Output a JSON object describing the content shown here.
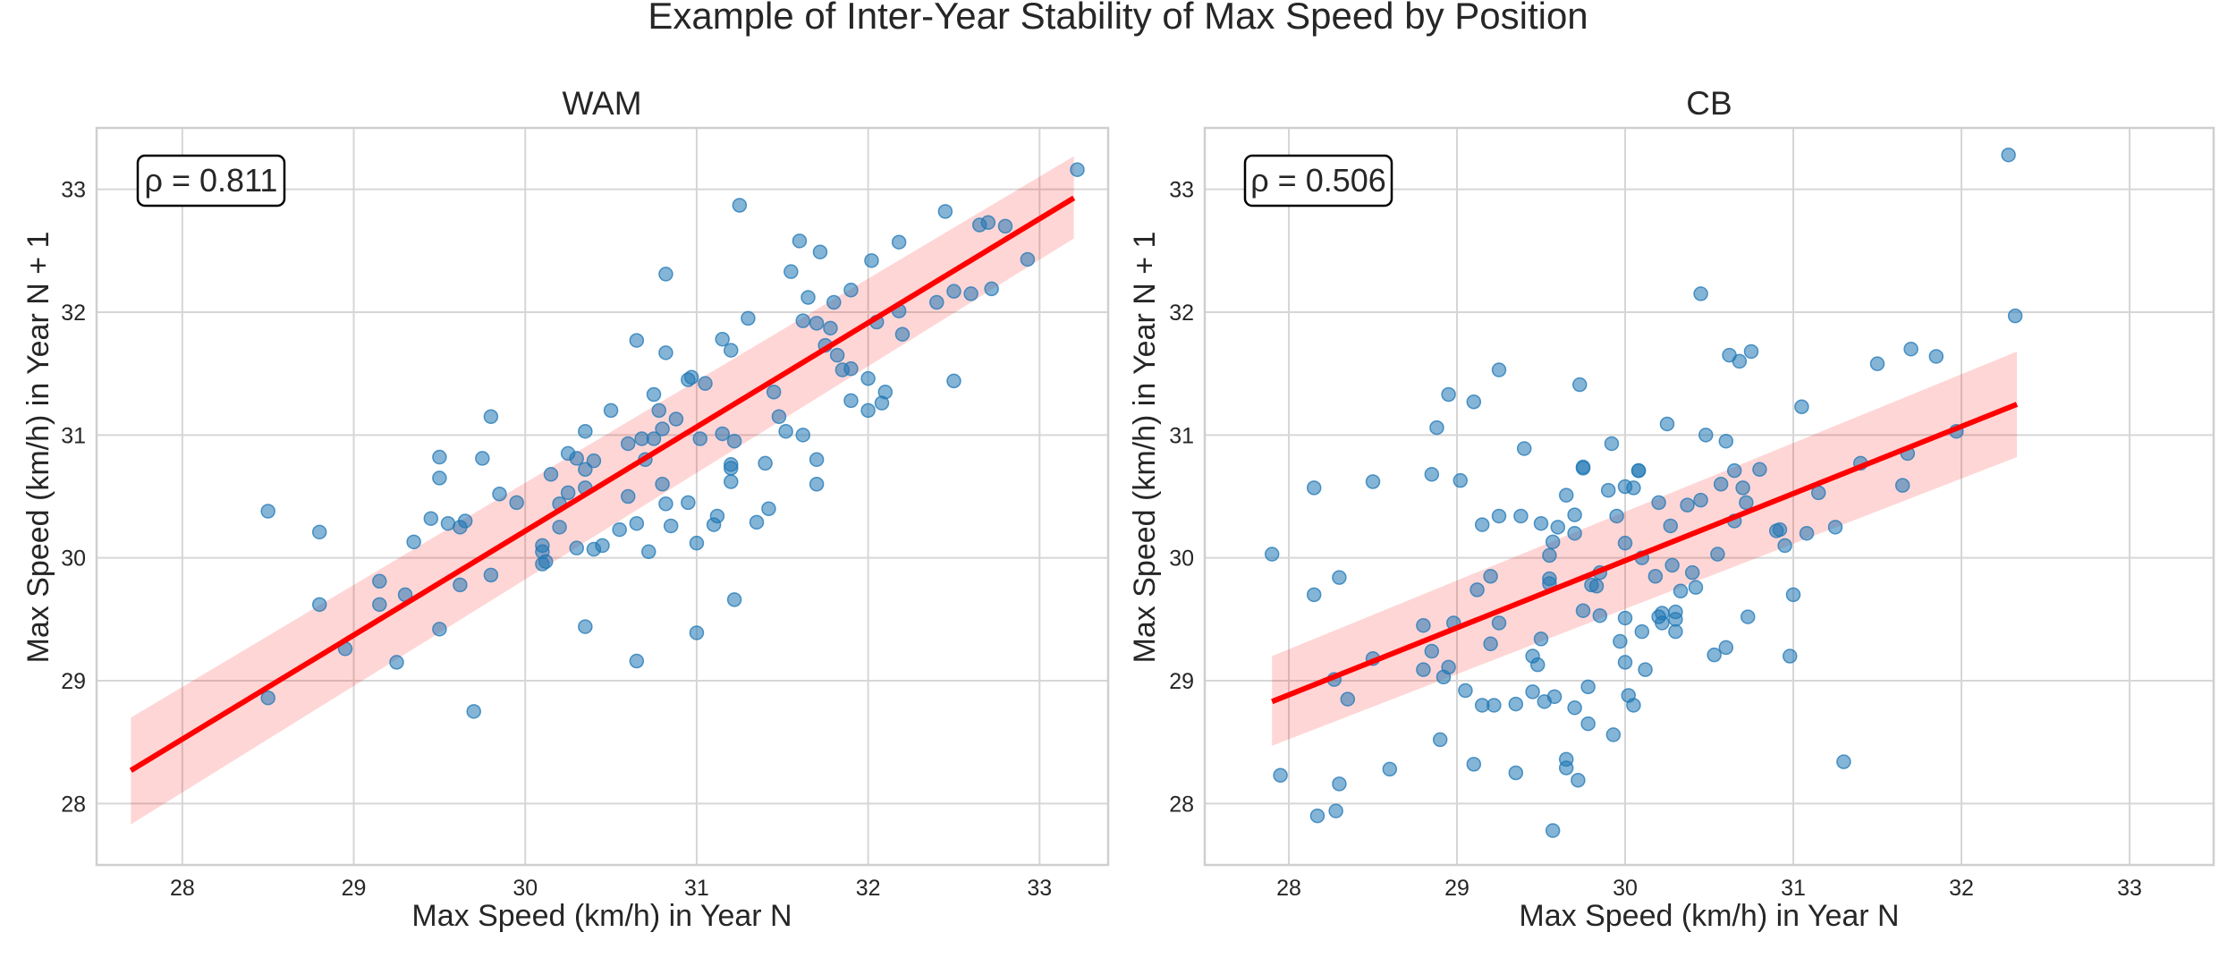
{
  "chart_data": {
    "title": "Example of Inter-Year Stability of Max Speed by Position",
    "type": "scatter",
    "panels": [
      {
        "title": "WAM",
        "xlabel": "Max Speed (km/h) in Year N",
        "ylabel": "Max Speed (km/h) in Year N + 1",
        "xlim": [
          27.5,
          33.4
        ],
        "ylim": [
          27.5,
          33.5
        ],
        "xticks": [
          28,
          29,
          30,
          31,
          32,
          33
        ],
        "yticks": [
          28,
          29,
          30,
          31,
          32,
          33
        ],
        "annotation": "ρ = 0.811",
        "regression": {
          "x": [
            27.7,
            33.2
          ],
          "y": [
            28.27,
            32.93
          ],
          "band_lower": [
            27.83,
            32.6
          ],
          "band_upper": [
            28.7,
            33.27
          ]
        },
        "points": [
          [
            28.5,
            30.38
          ],
          [
            28.5,
            28.86
          ],
          [
            28.8,
            29.62
          ],
          [
            28.8,
            30.21
          ],
          [
            28.95,
            29.26
          ],
          [
            29.15,
            29.81
          ],
          [
            29.15,
            29.62
          ],
          [
            29.25,
            29.15
          ],
          [
            29.3,
            29.7
          ],
          [
            29.35,
            30.13
          ],
          [
            29.45,
            30.32
          ],
          [
            29.5,
            30.65
          ],
          [
            29.5,
            30.82
          ],
          [
            29.5,
            29.42
          ],
          [
            29.55,
            30.28
          ],
          [
            29.62,
            30.25
          ],
          [
            29.65,
            30.3
          ],
          [
            29.62,
            29.78
          ],
          [
            29.7,
            28.75
          ],
          [
            29.75,
            30.81
          ],
          [
            29.8,
            31.15
          ],
          [
            29.8,
            29.86
          ],
          [
            29.85,
            30.52
          ],
          [
            29.95,
            30.45
          ],
          [
            30.1,
            30.1
          ],
          [
            30.1,
            30.05
          ],
          [
            30.1,
            29.95
          ],
          [
            30.12,
            29.97
          ],
          [
            30.15,
            30.68
          ],
          [
            30.2,
            30.44
          ],
          [
            30.2,
            30.25
          ],
          [
            30.25,
            30.53
          ],
          [
            30.25,
            30.85
          ],
          [
            30.3,
            30.81
          ],
          [
            30.3,
            30.08
          ],
          [
            30.35,
            30.57
          ],
          [
            30.35,
            30.72
          ],
          [
            30.35,
            31.03
          ],
          [
            30.35,
            29.44
          ],
          [
            30.4,
            30.79
          ],
          [
            30.4,
            30.07
          ],
          [
            30.45,
            30.1
          ],
          [
            30.5,
            31.2
          ],
          [
            30.55,
            30.23
          ],
          [
            30.6,
            30.5
          ],
          [
            30.6,
            30.93
          ],
          [
            30.65,
            31.77
          ],
          [
            30.65,
            30.28
          ],
          [
            30.65,
            29.16
          ],
          [
            30.68,
            30.97
          ],
          [
            30.7,
            30.8
          ],
          [
            30.72,
            30.05
          ],
          [
            30.75,
            30.97
          ],
          [
            30.75,
            31.33
          ],
          [
            30.78,
            31.2
          ],
          [
            30.8,
            31.05
          ],
          [
            30.8,
            30.6
          ],
          [
            30.82,
            30.44
          ],
          [
            30.82,
            31.67
          ],
          [
            30.82,
            32.31
          ],
          [
            30.85,
            30.26
          ],
          [
            30.88,
            31.13
          ],
          [
            30.95,
            30.45
          ],
          [
            30.95,
            31.45
          ],
          [
            30.97,
            31.47
          ],
          [
            31,
            30.12
          ],
          [
            31,
            29.39
          ],
          [
            31.02,
            30.97
          ],
          [
            31.05,
            31.42
          ],
          [
            31.1,
            30.27
          ],
          [
            31.12,
            30.34
          ],
          [
            31.15,
            31.01
          ],
          [
            31.15,
            31.78
          ],
          [
            31.2,
            30.73
          ],
          [
            31.2,
            30.76
          ],
          [
            31.2,
            30.62
          ],
          [
            31.2,
            31.69
          ],
          [
            31.22,
            30.95
          ],
          [
            31.22,
            29.66
          ],
          [
            31.25,
            32.87
          ],
          [
            31.3,
            31.95
          ],
          [
            31.35,
            30.29
          ],
          [
            31.4,
            30.77
          ],
          [
            31.42,
            30.4
          ],
          [
            31.45,
            31.35
          ],
          [
            31.48,
            31.15
          ],
          [
            31.52,
            31.03
          ],
          [
            31.55,
            32.33
          ],
          [
            31.6,
            32.58
          ],
          [
            31.62,
            31.93
          ],
          [
            31.62,
            31
          ],
          [
            31.65,
            32.12
          ],
          [
            31.7,
            31.91
          ],
          [
            31.7,
            30.8
          ],
          [
            31.7,
            30.6
          ],
          [
            31.72,
            32.49
          ],
          [
            31.75,
            31.73
          ],
          [
            31.78,
            31.87
          ],
          [
            31.8,
            32.08
          ],
          [
            31.82,
            31.65
          ],
          [
            31.85,
            31.53
          ],
          [
            31.9,
            32.18
          ],
          [
            31.9,
            31.54
          ],
          [
            31.9,
            31.28
          ],
          [
            32,
            31.46
          ],
          [
            32,
            31.2
          ],
          [
            32.02,
            32.42
          ],
          [
            32.05,
            31.92
          ],
          [
            32.08,
            31.26
          ],
          [
            32.1,
            31.35
          ],
          [
            32.18,
            32.57
          ],
          [
            32.18,
            32.01
          ],
          [
            32.2,
            31.82
          ],
          [
            32.4,
            32.08
          ],
          [
            32.45,
            32.82
          ],
          [
            32.5,
            32.17
          ],
          [
            32.5,
            31.44
          ],
          [
            32.6,
            32.15
          ],
          [
            32.65,
            32.71
          ],
          [
            32.7,
            32.73
          ],
          [
            32.72,
            32.19
          ],
          [
            32.8,
            32.7
          ],
          [
            32.93,
            32.43
          ],
          [
            33.22,
            33.16
          ]
        ]
      },
      {
        "title": "CB",
        "xlabel": "Max Speed (km/h) in Year N",
        "ylabel": "Max Speed (km/h) in Year N + 1",
        "xlim": [
          27.5,
          33.5
        ],
        "ylim": [
          27.5,
          33.5
        ],
        "xticks": [
          28,
          29,
          30,
          31,
          32,
          33
        ],
        "yticks": [
          28,
          29,
          30,
          31,
          32,
          33
        ],
        "annotation": "ρ = 0.506",
        "regression": {
          "x": [
            27.9,
            32.33
          ],
          "y": [
            28.83,
            31.25
          ],
          "band_lower": [
            28.47,
            30.82
          ],
          "band_upper": [
            29.2,
            31.68
          ]
        },
        "points": [
          [
            27.9,
            30.03
          ],
          [
            27.95,
            28.23
          ],
          [
            28.15,
            30.57
          ],
          [
            28.15,
            29.7
          ],
          [
            28.17,
            27.9
          ],
          [
            28.27,
            29.01
          ],
          [
            28.28,
            27.94
          ],
          [
            28.3,
            28.16
          ],
          [
            28.3,
            29.84
          ],
          [
            28.35,
            28.85
          ],
          [
            28.5,
            30.62
          ],
          [
            28.5,
            29.18
          ],
          [
            28.6,
            28.28
          ],
          [
            28.8,
            29.09
          ],
          [
            28.8,
            29.45
          ],
          [
            28.85,
            29.24
          ],
          [
            28.85,
            30.68
          ],
          [
            28.88,
            31.06
          ],
          [
            28.9,
            28.52
          ],
          [
            28.92,
            29.03
          ],
          [
            28.95,
            29.11
          ],
          [
            28.95,
            31.33
          ],
          [
            28.98,
            29.47
          ],
          [
            29.02,
            30.63
          ],
          [
            29.05,
            28.92
          ],
          [
            29.1,
            28.32
          ],
          [
            29.1,
            31.27
          ],
          [
            29.12,
            29.74
          ],
          [
            29.15,
            30.27
          ],
          [
            29.15,
            28.8
          ],
          [
            29.2,
            29.3
          ],
          [
            29.2,
            29.85
          ],
          [
            29.22,
            28.8
          ],
          [
            29.25,
            29.47
          ],
          [
            29.25,
            30.34
          ],
          [
            29.25,
            31.53
          ],
          [
            29.35,
            28.81
          ],
          [
            29.35,
            28.25
          ],
          [
            29.38,
            30.34
          ],
          [
            29.4,
            30.89
          ],
          [
            29.45,
            29.2
          ],
          [
            29.45,
            28.91
          ],
          [
            29.48,
            29.13
          ],
          [
            29.5,
            29.34
          ],
          [
            29.5,
            30.28
          ],
          [
            29.52,
            28.83
          ],
          [
            29.55,
            29.83
          ],
          [
            29.55,
            29.79
          ],
          [
            29.55,
            30.02
          ],
          [
            29.57,
            30.13
          ],
          [
            29.57,
            27.78
          ],
          [
            29.58,
            28.87
          ],
          [
            29.6,
            30.25
          ],
          [
            29.65,
            30.51
          ],
          [
            29.65,
            28.36
          ],
          [
            29.65,
            28.29
          ],
          [
            29.7,
            30.35
          ],
          [
            29.7,
            30.2
          ],
          [
            29.7,
            28.78
          ],
          [
            29.72,
            28.19
          ],
          [
            29.73,
            31.41
          ],
          [
            29.75,
            30.73
          ],
          [
            29.75,
            30.74
          ],
          [
            29.75,
            29.57
          ],
          [
            29.78,
            28.95
          ],
          [
            29.78,
            28.65
          ],
          [
            29.8,
            29.78
          ],
          [
            29.83,
            29.77
          ],
          [
            29.85,
            29.53
          ],
          [
            29.85,
            29.88
          ],
          [
            29.9,
            30.55
          ],
          [
            29.92,
            30.93
          ],
          [
            29.93,
            28.56
          ],
          [
            29.95,
            30.34
          ],
          [
            29.97,
            29.32
          ],
          [
            30,
            30.58
          ],
          [
            30,
            30.12
          ],
          [
            30,
            29.51
          ],
          [
            30,
            29.15
          ],
          [
            30.02,
            28.88
          ],
          [
            30.05,
            28.8
          ],
          [
            30.05,
            30.57
          ],
          [
            30.08,
            30.71
          ],
          [
            30.08,
            30.71
          ],
          [
            30.1,
            30
          ],
          [
            30.1,
            29.4
          ],
          [
            30.12,
            29.09
          ],
          [
            30.18,
            29.85
          ],
          [
            30.2,
            30.45
          ],
          [
            30.2,
            29.52
          ],
          [
            30.22,
            29.55
          ],
          [
            30.22,
            29.47
          ],
          [
            30.25,
            31.09
          ],
          [
            30.27,
            30.26
          ],
          [
            30.28,
            29.94
          ],
          [
            30.3,
            29.5
          ],
          [
            30.3,
            29.56
          ],
          [
            30.3,
            29.4
          ],
          [
            30.33,
            29.73
          ],
          [
            30.37,
            30.43
          ],
          [
            30.4,
            29.88
          ],
          [
            30.42,
            29.76
          ],
          [
            30.45,
            30.47
          ],
          [
            30.45,
            32.15
          ],
          [
            30.48,
            31
          ],
          [
            30.53,
            29.21
          ],
          [
            30.55,
            30.03
          ],
          [
            30.57,
            30.6
          ],
          [
            30.6,
            29.27
          ],
          [
            30.6,
            30.95
          ],
          [
            30.62,
            31.65
          ],
          [
            30.65,
            30.71
          ],
          [
            30.65,
            30.3
          ],
          [
            30.68,
            31.6
          ],
          [
            30.7,
            30.57
          ],
          [
            30.72,
            30.45
          ],
          [
            30.73,
            29.52
          ],
          [
            30.75,
            31.68
          ],
          [
            30.8,
            30.72
          ],
          [
            30.9,
            30.22
          ],
          [
            30.92,
            30.23
          ],
          [
            30.95,
            30.1
          ],
          [
            30.98,
            29.2
          ],
          [
            31,
            29.7
          ],
          [
            31.05,
            31.23
          ],
          [
            31.08,
            30.2
          ],
          [
            31.15,
            30.53
          ],
          [
            31.25,
            30.25
          ],
          [
            31.3,
            28.34
          ],
          [
            31.4,
            30.77
          ],
          [
            31.5,
            31.58
          ],
          [
            31.65,
            30.59
          ],
          [
            31.68,
            30.85
          ],
          [
            31.7,
            31.7
          ],
          [
            31.85,
            31.64
          ],
          [
            31.97,
            31.03
          ],
          [
            32.28,
            33.28
          ],
          [
            32.32,
            31.97
          ]
        ]
      }
    ]
  }
}
